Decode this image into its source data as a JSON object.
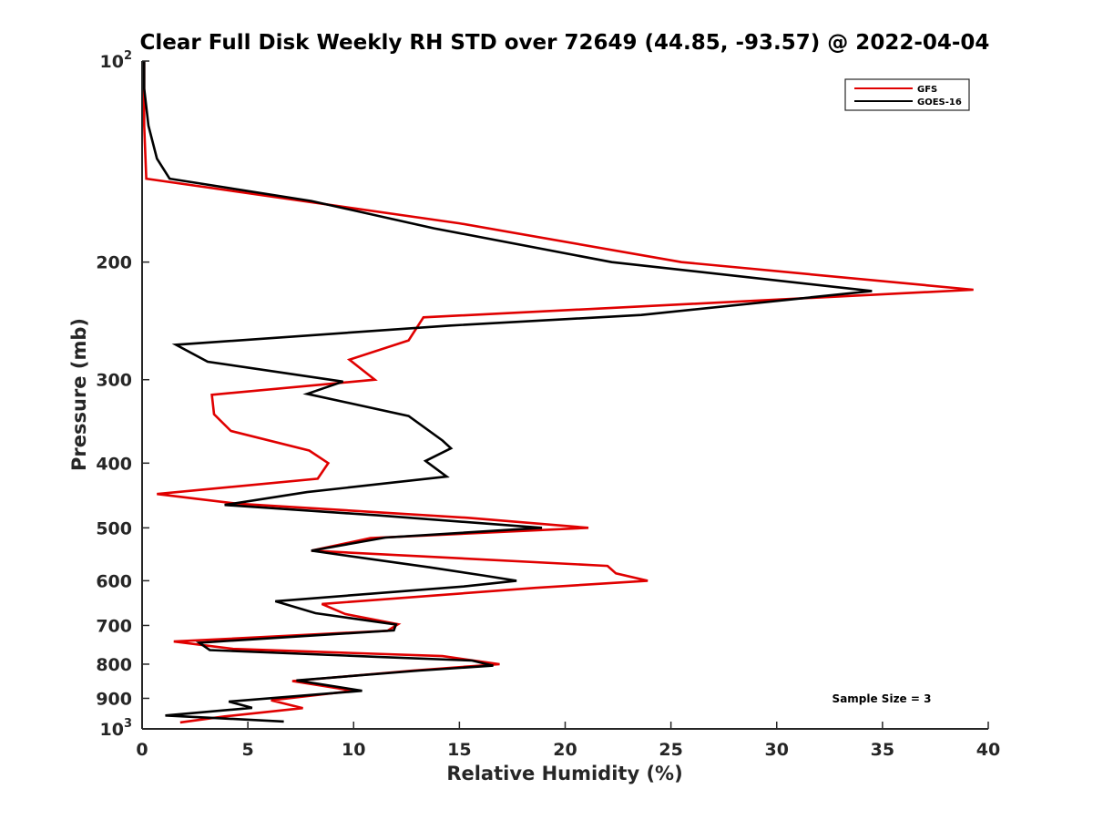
{
  "chart_data": {
    "type": "line",
    "title": "Clear Full Disk Weekly RH STD over 72649 (44.85, -93.57) @ 2022-04-04",
    "xlabel": "Relative Humidity (%)",
    "ylabel": "Pressure (mb)",
    "xlim": [
      0,
      40
    ],
    "ylim": [
      100,
      1000
    ],
    "yscale": "log",
    "yreversed": true,
    "grid": false,
    "legend_position": "top-right",
    "x_ticks": [
      0,
      5,
      10,
      15,
      20,
      25,
      30,
      35,
      40
    ],
    "x_tick_labels": [
      "0",
      "5",
      "10",
      "15",
      "20",
      "25",
      "30",
      "35",
      "40"
    ],
    "y_ticks": [
      100,
      200,
      300,
      400,
      500,
      600,
      700,
      800,
      900,
      1000
    ],
    "y_tick_labels": [
      {
        "base": "10",
        "exp": "2"
      },
      {
        "base": "200",
        "exp": ""
      },
      {
        "base": "300",
        "exp": ""
      },
      {
        "base": "400",
        "exp": ""
      },
      {
        "base": "500",
        "exp": ""
      },
      {
        "base": "600",
        "exp": ""
      },
      {
        "base": "700",
        "exp": ""
      },
      {
        "base": "800",
        "exp": ""
      },
      {
        "base": "900",
        "exp": ""
      },
      {
        "base": "10",
        "exp": "3"
      }
    ],
    "annotation": "Sample Size = 3",
    "series": [
      {
        "name": "GFS",
        "color": "#e00000",
        "points": [
          [
            0.1,
            100
          ],
          [
            0.1,
            125
          ],
          [
            0.2,
            150
          ],
          [
            15,
            175
          ],
          [
            25.5,
            200
          ],
          [
            39.3,
            220
          ],
          [
            13.3,
            242
          ],
          [
            12.6,
            262
          ],
          [
            9.8,
            280
          ],
          [
            11.0,
            300
          ],
          [
            3.3,
            316
          ],
          [
            3.4,
            338
          ],
          [
            4.2,
            358
          ],
          [
            7.9,
            383
          ],
          [
            8.8,
            400
          ],
          [
            8.3,
            422
          ],
          [
            0.7,
            445
          ],
          [
            4.5,
            460
          ],
          [
            15.4,
            483
          ],
          [
            21.1,
            500
          ],
          [
            10.8,
            518
          ],
          [
            8.0,
            541
          ],
          [
            22.0,
            570
          ],
          [
            22.4,
            585
          ],
          [
            23.9,
            600
          ],
          [
            18.6,
            615
          ],
          [
            8.5,
            650
          ],
          [
            9.6,
            673
          ],
          [
            12.1,
            697
          ],
          [
            11.6,
            713
          ],
          [
            1.5,
            740
          ],
          [
            4.3,
            759
          ],
          [
            14.2,
            778
          ],
          [
            16.9,
            800
          ],
          [
            12.8,
            818
          ],
          [
            7.1,
            848
          ],
          [
            10.0,
            877
          ],
          [
            6.1,
            906
          ],
          [
            7.6,
            931
          ],
          [
            3.9,
            958
          ],
          [
            1.8,
            978
          ]
        ]
      },
      {
        "name": "GOES-16",
        "color": "#000000",
        "points": [
          [
            0.1,
            100
          ],
          [
            0.1,
            110
          ],
          [
            0.3,
            125
          ],
          [
            0.7,
            140
          ],
          [
            1.3,
            150
          ],
          [
            8,
            162
          ],
          [
            13.8,
            178
          ],
          [
            22.2,
            200
          ],
          [
            34.5,
            221
          ],
          [
            23.6,
            240
          ],
          [
            14.5,
            249
          ],
          [
            1.6,
            266
          ],
          [
            3.1,
            282
          ],
          [
            9.5,
            302
          ],
          [
            7.8,
            315
          ],
          [
            12.6,
            340
          ],
          [
            14.2,
            370
          ],
          [
            14.6,
            380
          ],
          [
            13.4,
            397
          ],
          [
            14.4,
            419
          ],
          [
            7.8,
            442
          ],
          [
            3.9,
            462
          ],
          [
            11.2,
            479
          ],
          [
            18.9,
            500
          ],
          [
            11.5,
            517
          ],
          [
            8.0,
            541
          ],
          [
            13.6,
            573
          ],
          [
            16.1,
            589
          ],
          [
            17.7,
            600
          ],
          [
            15.2,
            612
          ],
          [
            6.3,
            644
          ],
          [
            8.2,
            671
          ],
          [
            12.0,
            698
          ],
          [
            11.9,
            712
          ],
          [
            2.7,
            743
          ],
          [
            3.2,
            762
          ],
          [
            11.1,
            780
          ],
          [
            15.6,
            790
          ],
          [
            16.6,
            804
          ],
          [
            13.1,
            818
          ],
          [
            7.3,
            846
          ],
          [
            10.4,
            877
          ],
          [
            4.1,
            910
          ],
          [
            5.2,
            930
          ],
          [
            1.1,
            955
          ],
          [
            6.7,
            975
          ]
        ]
      }
    ]
  }
}
